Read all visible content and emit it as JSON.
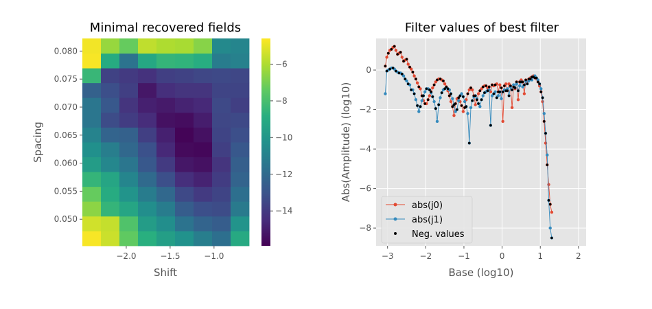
{
  "chart_data": [
    {
      "type": "heatmap",
      "title": "Minimal recovered fields",
      "xlabel": "Shift",
      "ylabel": "Spacing",
      "x_ticks": [
        "−2.0",
        "−1.5",
        "−1.0"
      ],
      "x_tick_values": [
        -2.0,
        -1.5,
        -1.0
      ],
      "y_ticks": [
        "0.050",
        "0.055",
        "0.060",
        "0.065",
        "0.070",
        "0.075",
        "0.080"
      ],
      "y_tick_values": [
        0.05,
        0.055,
        0.06,
        0.065,
        0.07,
        0.075,
        0.08
      ],
      "colorbar_ticks": [
        "−6",
        "−8",
        "−10",
        "−12",
        "−14"
      ],
      "colorbar_tick_values": [
        -6,
        -8,
        -10,
        -12,
        -14
      ],
      "colorbar_range": [
        -15.9,
        -4.6
      ],
      "colormap": "viridis",
      "x_range": [
        -2.5,
        -0.6
      ],
      "y_range": [
        0.04525,
        0.08225
      ],
      "x_centers": [
        -2.4,
        -2.2,
        -2.0,
        -1.8,
        -1.6,
        -1.4,
        -1.2,
        -1.0,
        -0.8
      ],
      "y_centers": [
        0.0475,
        0.05,
        0.0525,
        0.055,
        0.0575,
        0.06,
        0.0625,
        0.065,
        0.0675,
        0.07,
        0.0725,
        0.075,
        0.0775,
        0.08
      ],
      "values": [
        [
          -4.7,
          -5.4,
          -6.6,
          -7.3,
          -8.5,
          -9.7,
          -10.3,
          -10.9,
          -11.5,
          -11.5,
          -12.4,
          -8.4,
          -4.7,
          -4.8
        ],
        [
          -5.5,
          -5.6,
          -8.5,
          -9.0,
          -9.3,
          -10.7,
          -11.1,
          -12.3,
          -13.3,
          -12.8,
          -13.2,
          -13.7,
          -9.0,
          -6.4
        ],
        [
          -7.4,
          -7.8,
          -9.3,
          -10.1,
          -10.8,
          -11.5,
          -12.1,
          -12.4,
          -13.9,
          -14.2,
          -13.8,
          -14.0,
          -11.6,
          -7.3
        ],
        [
          -8.8,
          -9.7,
          -10.4,
          -11.2,
          -12.0,
          -12.8,
          -13.1,
          -13.8,
          -14.5,
          -14.9,
          -15.2,
          -14.3,
          -9.2,
          -5.7
        ],
        [
          -9.6,
          -10.4,
          -11.2,
          -12.1,
          -13.2,
          -14.0,
          -14.6,
          -14.9,
          -15.4,
          -15.1,
          -14.4,
          -13.8,
          -8.5,
          -6.0
        ],
        [
          -10.2,
          -11.6,
          -12.6,
          -13.4,
          -14.4,
          -15.2,
          -15.6,
          -15.8,
          -15.5,
          -14.8,
          -14.2,
          -13.7,
          -8.6,
          -6.1
        ],
        [
          -11.1,
          -12.3,
          -13.2,
          -14.0,
          -14.8,
          -15.4,
          -15.7,
          -15.4,
          -15.0,
          -14.6,
          -14.2,
          -13.5,
          -8.9,
          -6.7
        ],
        [
          -11.8,
          -12.6,
          -13.3,
          -13.6,
          -13.9,
          -14.2,
          -13.8,
          -13.6,
          -13.5,
          -13.4,
          -13.6,
          -13.4,
          -11.2,
          -10.6
        ],
        [
          -9.1,
          -10.1,
          -11.3,
          -11.8,
          -12.3,
          -12.5,
          -12.8,
          -13.2,
          -13.4,
          -13.8,
          -13.6,
          -13.5,
          -11.0,
          -10.8
        ]
      ]
    },
    {
      "type": "line",
      "title": "Filter values of best filter",
      "xlabel": "Base (log10)",
      "ylabel": "Abs(Amplitude) (log10)",
      "xlim": [
        -3.3,
        2.2
      ],
      "ylim": [
        -8.9,
        1.6
      ],
      "x_ticks": [
        "−3",
        "−2",
        "−1",
        "0",
        "1",
        "2"
      ],
      "x_tick_values": [
        -3,
        -2,
        -1,
        0,
        1,
        2
      ],
      "y_ticks": [
        "0",
        "−2",
        "−4",
        "−6",
        "−8"
      ],
      "y_tick_values": [
        0,
        -2,
        -4,
        -6,
        -8
      ],
      "grid": true,
      "legend_position": "lower-left",
      "x_start": -3.06,
      "x_step": 0.04,
      "series": [
        {
          "name": "abs(j0)",
          "color": "#E24A33",
          "values": [
            0.2,
            0.65,
            0.85,
            1.0,
            1.05,
            1.15,
            1.2,
            1.0,
            0.8,
            0.85,
            0.9,
            0.65,
            0.45,
            0.5,
            0.55,
            0.3,
            0.15,
            0.05,
            -0.1,
            -0.3,
            -0.45,
            -0.65,
            -0.85,
            -0.95,
            -1.3,
            -1.55,
            -1.7,
            -1.7,
            -1.5,
            -1.3,
            -1.1,
            -0.9,
            -0.75,
            -0.6,
            -0.5,
            -0.45,
            -0.45,
            -0.5,
            -0.55,
            -0.7,
            -0.85,
            -1.05,
            -1.3,
            -1.6,
            -1.85,
            -2.3,
            -1.7,
            -1.45,
            -1.4,
            -1.6,
            -1.8,
            -2.1,
            -1.9,
            -1.5,
            -1.2,
            -1.0,
            -0.9,
            -1.0,
            -1.3,
            -1.75,
            -1.5,
            -1.2,
            -1.05,
            -0.95,
            -0.85,
            -0.8,
            -0.8,
            -0.9,
            -0.85,
            -1.1,
            -0.75,
            -0.8,
            -0.75,
            -0.7,
            -1.1,
            -0.75,
            -0.9,
            -2.6,
            -0.8,
            -0.7,
            -1.05,
            -0.7,
            -0.8,
            -1.9,
            -0.85,
            -0.95,
            -0.6,
            -1.5,
            -0.6,
            -0.5,
            -0.6,
            -1.2,
            -0.5,
            -0.55,
            -0.45,
            -0.4,
            -0.35,
            -0.3,
            -0.4,
            -0.45,
            -0.6,
            -0.8,
            -1.1,
            -1.6,
            -2.6,
            -3.7,
            -4.8,
            -5.8,
            -6.8,
            -7.2
          ],
          "note": null
        },
        {
          "name": "abs(j1)",
          "color": "#348ABD",
          "values": [
            -1.2,
            -0.05,
            0.0,
            0.05,
            0.1,
            0.1,
            0.05,
            -0.05,
            -0.1,
            -0.15,
            -0.15,
            -0.2,
            -0.3,
            -0.45,
            -0.55,
            -0.7,
            -0.75,
            -1.0,
            -1.0,
            -1.2,
            -1.5,
            -1.8,
            -2.1,
            -1.85,
            -1.55,
            -1.3,
            -1.1,
            -0.95,
            -0.95,
            -1.0,
            -1.15,
            -1.35,
            -1.6,
            -1.95,
            -2.6,
            -1.75,
            -1.4,
            -1.15,
            -1.0,
            -0.95,
            -0.9,
            -0.95,
            -1.0,
            -1.2,
            -1.45,
            -1.75,
            -2.1,
            -2.0,
            -1.55,
            -1.3,
            -1.2,
            -1.35,
            -1.6,
            -1.85,
            -2.2,
            -3.7,
            -1.9,
            -1.55,
            -1.35,
            -1.3,
            -1.45,
            -1.7,
            -1.85,
            -1.5,
            -1.3,
            -1.15,
            -1.1,
            -1.05,
            -1.0,
            -2.8,
            -1.3,
            -1.2,
            -1.1,
            -1.4,
            -1.3,
            -1.1,
            -1.45,
            -1.1,
            -1.0,
            -1.05,
            -0.95,
            -1.3,
            -0.85,
            -1.0,
            -0.75,
            -0.9,
            -0.7,
            -1.05,
            -0.8,
            -0.6,
            -0.85,
            -0.75,
            -0.55,
            -0.7,
            -0.55,
            -0.45,
            -0.5,
            -0.35,
            -0.3,
            -0.4,
            -0.5,
            -0.7,
            -0.95,
            -1.4,
            -2.2,
            -3.2,
            -4.3,
            -6.6,
            -8.0,
            -8.5
          ]
        }
      ],
      "neg_values": {
        "name": "Neg. values",
        "color": "#000000"
      }
    }
  ]
}
